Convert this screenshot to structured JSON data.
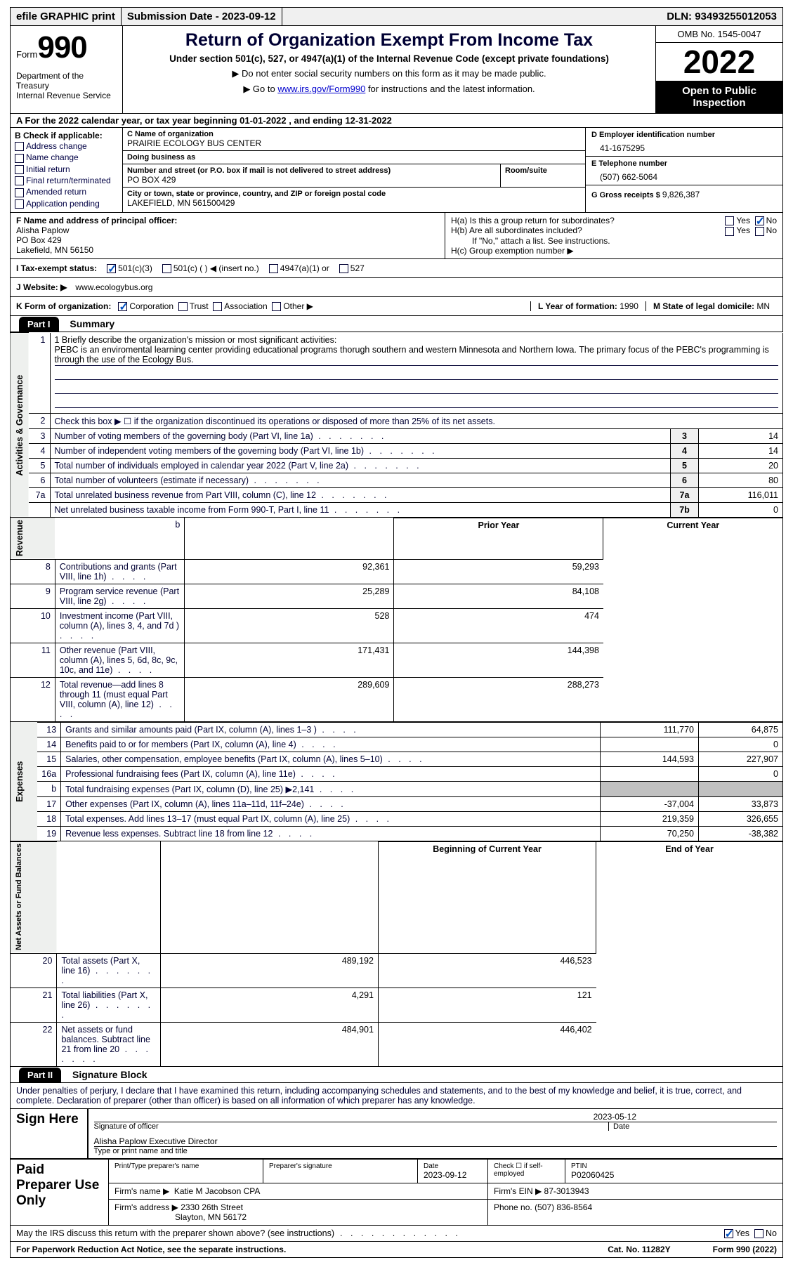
{
  "topbar": {
    "efile": "efile GRAPHIC print",
    "submission_label": "Submission Date - ",
    "submission_date": "2023-09-12",
    "dln_label": "DLN: ",
    "dln": "93493255012053"
  },
  "header": {
    "form_word": "Form",
    "form_number": "990",
    "dept": "Department of the Treasury\nInternal Revenue Service",
    "main_title": "Return of Organization Exempt From Income Tax",
    "subtitle": "Under section 501(c), 527, or 4947(a)(1) of the Internal Revenue Code (except private foundations)",
    "note1": "▶ Do not enter social security numbers on this form as it may be made public.",
    "note2_pre": "▶ Go to ",
    "note2_link": "www.irs.gov/Form990",
    "note2_post": " for instructions and the latest information.",
    "omb": "OMB No. 1545-0047",
    "tax_year": "2022",
    "opi": "Open to Public Inspection"
  },
  "section_a": {
    "text": "A For the 2022 calendar year, or tax year beginning 01-01-2022   , and ending 12-31-2022"
  },
  "block_b": {
    "title": "B Check if applicable:",
    "opts": [
      "Address change",
      "Name change",
      "Initial return",
      "Final return/terminated",
      "Amended return",
      "Application pending"
    ]
  },
  "block_c": {
    "name_label": "C Name of organization",
    "org_name": "PRAIRIE ECOLOGY BUS CENTER",
    "dba_label": "Doing business as",
    "dba": "",
    "street_label": "Number and street (or P.O. box if mail is not delivered to street address)",
    "room_label": "Room/suite",
    "street": "PO BOX 429",
    "city_label": "City or town, state or province, country, and ZIP or foreign postal code",
    "city": "LAKEFIELD, MN  561500429"
  },
  "block_d": {
    "label": "D Employer identification number",
    "value": "41-1675295"
  },
  "block_e": {
    "label": "E Telephone number",
    "value": "(507) 662-5064"
  },
  "block_g": {
    "label": "G Gross receipts $ ",
    "value": "9,826,387"
  },
  "block_f": {
    "label": "F Name and address of principal officer:",
    "name": "Alisha Paplow",
    "addr1": "PO Box 429",
    "addr2": "Lakefield, MN  56150"
  },
  "block_h": {
    "ha_label": "H(a)  Is this a group return for subordinates?",
    "hb_label": "H(b)  Are all subordinates included?",
    "h_note": "If \"No,\" attach a list. See instructions.",
    "hc_label": "H(c)  Group exemption number ▶",
    "yes": "Yes",
    "no": "No"
  },
  "block_i": {
    "label": "I  Tax-exempt status:",
    "opts": [
      "501(c)(3)",
      "501(c) (  ) ◀ (insert no.)",
      "4947(a)(1) or",
      "527"
    ]
  },
  "block_j": {
    "label": "J  Website: ▶",
    "value": "www.ecologybus.org"
  },
  "block_k": {
    "label": "K Form of organization:",
    "opts": [
      "Corporation",
      "Trust",
      "Association",
      "Other ▶"
    ],
    "l_label": "L Year of formation: ",
    "l_value": "1990",
    "m_label": "M State of legal domicile: ",
    "m_value": "MN"
  },
  "part1": {
    "tab": "Part I",
    "title": "Summary"
  },
  "mission": {
    "label": "1  Briefly describe the organization's mission or most significant activities:",
    "text": "PEBC is an enviromental learning center providing educational programs thorugh southern and western Minnesota and Northern Iowa. The primary focus of the PEBC's programming is through the use of the Ecology Bus."
  },
  "check2": "Check this box ▶ ☐  if the organization discontinued its operations or disposed of more than 25% of its net assets.",
  "sidebar": {
    "s1": "Activities & Governance",
    "s2": "Revenue",
    "s3": "Expenses",
    "s4": "Net Assets or Fund Balances"
  },
  "lines_governance": [
    {
      "n": "3",
      "d": "Number of voting members of the governing body (Part VI, line 1a)",
      "box": "3",
      "v": "14"
    },
    {
      "n": "4",
      "d": "Number of independent voting members of the governing body (Part VI, line 1b)",
      "box": "4",
      "v": "14"
    },
    {
      "n": "5",
      "d": "Total number of individuals employed in calendar year 2022 (Part V, line 2a)",
      "box": "5",
      "v": "20"
    },
    {
      "n": "6",
      "d": "Total number of volunteers (estimate if necessary)",
      "box": "6",
      "v": "80"
    },
    {
      "n": "7a",
      "d": "Total unrelated business revenue from Part VIII, column (C), line 12",
      "box": "7a",
      "v": "116,011"
    },
    {
      "n": "",
      "d": "Net unrelated business taxable income from Form 990-T, Part I, line 11",
      "box": "7b",
      "v": "0"
    }
  ],
  "col_heads": {
    "prior": "Prior Year",
    "current": "Current Year",
    "boy": "Beginning of Current Year",
    "eoy": "End of Year"
  },
  "lines_revenue": [
    {
      "n": "8",
      "d": "Contributions and grants (Part VIII, line 1h)",
      "p": "92,361",
      "c": "59,293"
    },
    {
      "n": "9",
      "d": "Program service revenue (Part VIII, line 2g)",
      "p": "25,289",
      "c": "84,108"
    },
    {
      "n": "10",
      "d": "Investment income (Part VIII, column (A), lines 3, 4, and 7d )",
      "p": "528",
      "c": "474"
    },
    {
      "n": "11",
      "d": "Other revenue (Part VIII, column (A), lines 5, 6d, 8c, 9c, 10c, and 11e)",
      "p": "171,431",
      "c": "144,398"
    },
    {
      "n": "12",
      "d": "Total revenue—add lines 8 through 11 (must equal Part VIII, column (A), line 12)",
      "p": "289,609",
      "c": "288,273"
    }
  ],
  "lines_expenses": [
    {
      "n": "13",
      "d": "Grants and similar amounts paid (Part IX, column (A), lines 1–3 )",
      "p": "111,770",
      "c": "64,875"
    },
    {
      "n": "14",
      "d": "Benefits paid to or for members (Part IX, column (A), line 4)",
      "p": "",
      "c": "0"
    },
    {
      "n": "15",
      "d": "Salaries, other compensation, employee benefits (Part IX, column (A), lines 5–10)",
      "p": "144,593",
      "c": "227,907"
    },
    {
      "n": "16a",
      "d": "Professional fundraising fees (Part IX, column (A), line 11e)",
      "p": "",
      "c": "0"
    },
    {
      "n": "b",
      "d": "Total fundraising expenses (Part IX, column (D), line 25) ▶2,141",
      "p": "GRAY",
      "c": "GRAY"
    },
    {
      "n": "17",
      "d": "Other expenses (Part IX, column (A), lines 11a–11d, 11f–24e)",
      "p": "-37,004",
      "c": "33,873"
    },
    {
      "n": "18",
      "d": "Total expenses. Add lines 13–17 (must equal Part IX, column (A), line 25)",
      "p": "219,359",
      "c": "326,655"
    },
    {
      "n": "19",
      "d": "Revenue less expenses. Subtract line 18 from line 12",
      "p": "70,250",
      "c": "-38,382"
    }
  ],
  "lines_net": [
    {
      "n": "20",
      "d": "Total assets (Part X, line 16)",
      "p": "489,192",
      "c": "446,523"
    },
    {
      "n": "21",
      "d": "Total liabilities (Part X, line 26)",
      "p": "4,291",
      "c": "121"
    },
    {
      "n": "22",
      "d": "Net assets or fund balances. Subtract line 21 from line 20",
      "p": "484,901",
      "c": "446,402"
    }
  ],
  "part2": {
    "tab": "Part II",
    "title": "Signature Block"
  },
  "sig_intro": "Under penalties of perjury, I declare that I have examined this return, including accompanying schedules and statements, and to the best of my knowledge and belief, it is true, correct, and complete. Declaration of preparer (other than officer) is based on all information of which preparer has any knowledge.",
  "sign": {
    "left": "Sign Here",
    "sig_of_officer": "Signature of officer",
    "date": "2023-05-12",
    "date_label": "Date",
    "name": "Alisha Paplow  Executive Director",
    "name_label": "Type or print name and title"
  },
  "paid": {
    "left": "Paid Preparer Use Only",
    "print_label": "Print/Type preparer's name",
    "sig_label": "Preparer's signature",
    "date_label": "Date",
    "date": "2023-09-12",
    "check_label": "Check ☐ if self-employed",
    "ptin_label": "PTIN",
    "ptin": "P02060425",
    "firm_name_label": "Firm's name   ▶",
    "firm_name": "Katie M Jacobson CPA",
    "firm_ein_label": "Firm's EIN ▶",
    "firm_ein": "87-3013943",
    "firm_addr_label": "Firm's address ▶",
    "firm_addr": "2330 26th Street",
    "firm_city": "Slayton, MN  56172",
    "phone_label": "Phone no. ",
    "phone": "(507) 836-8564"
  },
  "discuss": {
    "text": "May the IRS discuss this return with the preparer shown above? (see instructions)",
    "yes": "Yes",
    "no": "No"
  },
  "footer": {
    "left": "For Paperwork Reduction Act Notice, see the separate instructions.",
    "mid": "Cat. No. 11282Y",
    "right": "Form 990 (2022)"
  }
}
